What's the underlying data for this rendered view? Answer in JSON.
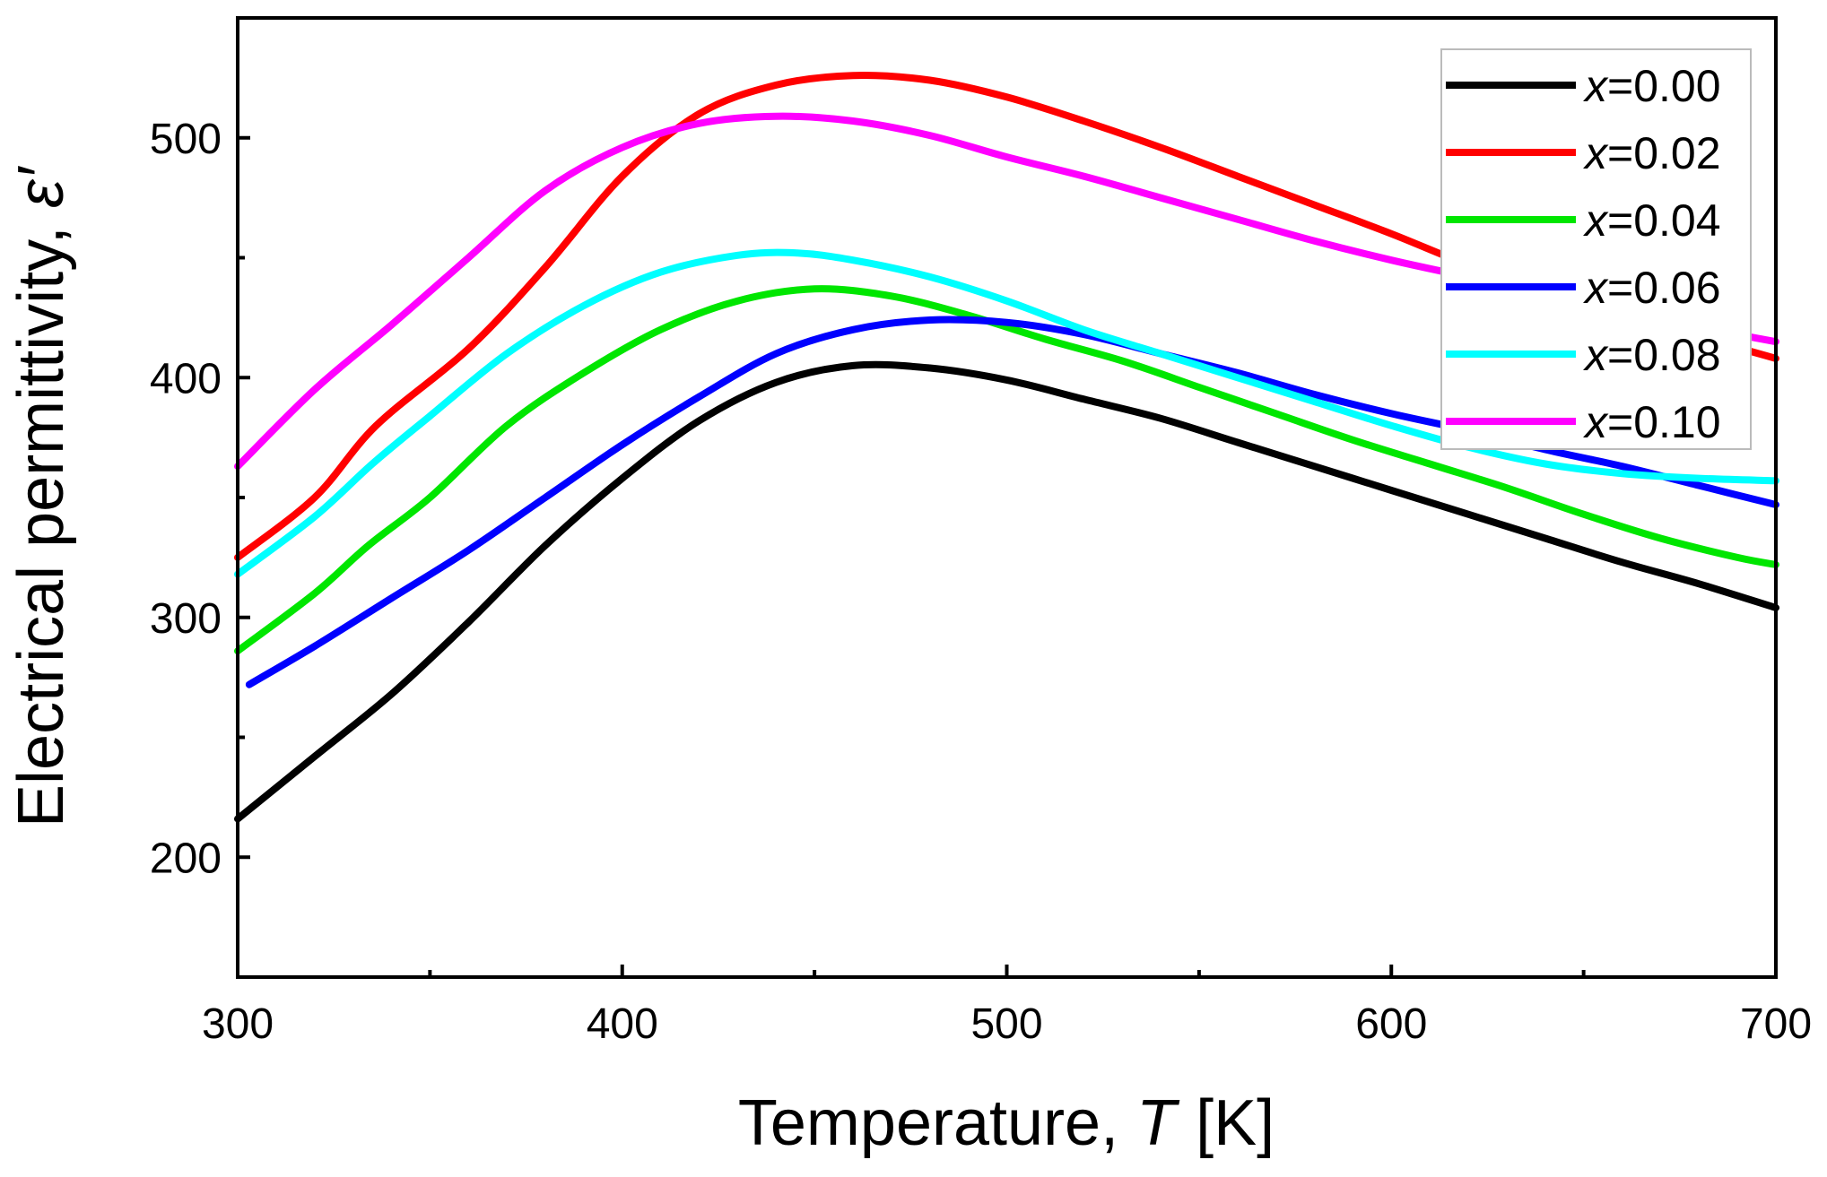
{
  "chart_data": {
    "type": "line",
    "xlabel": "Temperature, ",
    "xlabel_var": "T",
    "xlabel_unit": "[K]",
    "ylabel": "Electrical permittivity, ",
    "ylabel_var": "ε′",
    "xlim": [
      300,
      700
    ],
    "ylim": [
      150,
      550
    ],
    "xticks": [
      300,
      400,
      500,
      600,
      700
    ],
    "yticks": [
      200,
      300,
      400,
      500
    ],
    "x_minor_ticks": [
      350,
      450,
      550,
      650
    ],
    "y_minor_ticks": [
      250,
      350,
      450
    ],
    "legend_position": "top-right",
    "grid": false,
    "series": [
      {
        "name_prefix": "x",
        "name_value": "=0.00",
        "color": "#000000",
        "points": [
          [
            300,
            216
          ],
          [
            320,
            242
          ],
          [
            340,
            268
          ],
          [
            360,
            298
          ],
          [
            380,
            330
          ],
          [
            400,
            358
          ],
          [
            420,
            382
          ],
          [
            440,
            398
          ],
          [
            460,
            405
          ],
          [
            480,
            404
          ],
          [
            500,
            399
          ],
          [
            520,
            391
          ],
          [
            540,
            383
          ],
          [
            560,
            373
          ],
          [
            580,
            363
          ],
          [
            600,
            353
          ],
          [
            620,
            343
          ],
          [
            640,
            333
          ],
          [
            660,
            323
          ],
          [
            680,
            314
          ],
          [
            700,
            304
          ]
        ]
      },
      {
        "name_prefix": "x",
        "name_value": "=0.02",
        "color": "#ff0000",
        "points": [
          [
            300,
            325
          ],
          [
            320,
            350
          ],
          [
            336,
            380
          ],
          [
            360,
            412
          ],
          [
            380,
            446
          ],
          [
            400,
            484
          ],
          [
            420,
            510
          ],
          [
            440,
            522
          ],
          [
            460,
            526
          ],
          [
            480,
            524
          ],
          [
            500,
            517
          ],
          [
            520,
            507
          ],
          [
            540,
            496
          ],
          [
            560,
            484
          ],
          [
            580,
            472
          ],
          [
            600,
            460
          ],
          [
            620,
            447
          ],
          [
            640,
            436
          ],
          [
            660,
            426
          ],
          [
            680,
            417
          ],
          [
            700,
            408
          ]
        ]
      },
      {
        "name_prefix": "x",
        "name_value": "=0.04",
        "color": "#00e600",
        "points": [
          [
            300,
            286
          ],
          [
            320,
            310
          ],
          [
            334,
            330
          ],
          [
            350,
            350
          ],
          [
            370,
            380
          ],
          [
            390,
            402
          ],
          [
            410,
            420
          ],
          [
            430,
            432
          ],
          [
            450,
            437
          ],
          [
            470,
            434
          ],
          [
            490,
            426
          ],
          [
            510,
            416
          ],
          [
            530,
            407
          ],
          [
            550,
            396
          ],
          [
            570,
            385
          ],
          [
            590,
            374
          ],
          [
            610,
            364
          ],
          [
            630,
            354
          ],
          [
            650,
            343
          ],
          [
            670,
            333
          ],
          [
            690,
            325
          ],
          [
            700,
            322
          ]
        ]
      },
      {
        "name_prefix": "x",
        "name_value": "=0.06",
        "color": "#0000ff",
        "points": [
          [
            303,
            272
          ],
          [
            320,
            288
          ],
          [
            340,
            308
          ],
          [
            360,
            328
          ],
          [
            380,
            350
          ],
          [
            400,
            372
          ],
          [
            420,
            392
          ],
          [
            440,
            410
          ],
          [
            460,
            420
          ],
          [
            480,
            424
          ],
          [
            500,
            423
          ],
          [
            520,
            418
          ],
          [
            540,
            410
          ],
          [
            560,
            402
          ],
          [
            580,
            393
          ],
          [
            600,
            385
          ],
          [
            620,
            378
          ],
          [
            640,
            370
          ],
          [
            660,
            363
          ],
          [
            680,
            355
          ],
          [
            700,
            347
          ]
        ]
      },
      {
        "name_prefix": "x",
        "name_value": "=0.08",
        "color": "#00ffff",
        "points": [
          [
            300,
            318
          ],
          [
            320,
            342
          ],
          [
            335,
            364
          ],
          [
            350,
            384
          ],
          [
            370,
            410
          ],
          [
            390,
            430
          ],
          [
            410,
            444
          ],
          [
            430,
            451
          ],
          [
            445,
            452
          ],
          [
            460,
            449
          ],
          [
            480,
            442
          ],
          [
            500,
            432
          ],
          [
            520,
            420
          ],
          [
            540,
            410
          ],
          [
            560,
            400
          ],
          [
            580,
            390
          ],
          [
            600,
            380
          ],
          [
            620,
            371
          ],
          [
            640,
            364
          ],
          [
            660,
            360
          ],
          [
            680,
            358
          ],
          [
            700,
            357
          ]
        ]
      },
      {
        "name_prefix": "x",
        "name_value": "=0.10",
        "color": "#ff00ff",
        "points": [
          [
            300,
            363
          ],
          [
            320,
            395
          ],
          [
            340,
            422
          ],
          [
            360,
            450
          ],
          [
            380,
            478
          ],
          [
            400,
            496
          ],
          [
            420,
            506
          ],
          [
            440,
            509
          ],
          [
            460,
            507
          ],
          [
            480,
            501
          ],
          [
            500,
            492
          ],
          [
            520,
            484
          ],
          [
            540,
            475
          ],
          [
            560,
            466
          ],
          [
            580,
            457
          ],
          [
            600,
            449
          ],
          [
            620,
            442
          ],
          [
            640,
            435
          ],
          [
            660,
            428
          ],
          [
            680,
            421
          ],
          [
            700,
            415
          ]
        ]
      }
    ]
  }
}
